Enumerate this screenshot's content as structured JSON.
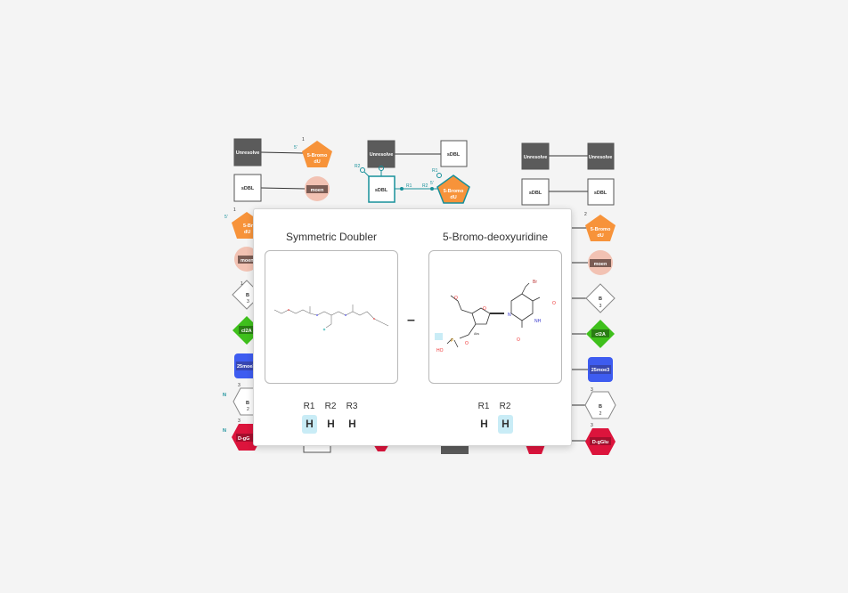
{
  "canvas": {
    "col1": {
      "row1": {
        "a": "Unresolve",
        "b": "5-Bromo dU",
        "num": "1",
        "five": "5'"
      },
      "row2": {
        "a": "sDBL",
        "b": "moen"
      },
      "row3": {
        "a": "5-Bromo dU",
        "five": "5'",
        "num": "1"
      },
      "row4": {
        "a": "moen"
      },
      "row5": {
        "a": "B",
        "sub": "3",
        "num": "1"
      },
      "row6": {
        "a": "cl2A"
      },
      "row7": {
        "a": "25moe3"
      },
      "row8": {
        "a": "B",
        "sub": "2",
        "num": "3",
        "n": "N"
      },
      "row9": {
        "a": "D-gGlu",
        "num": "3",
        "n": "N"
      }
    },
    "col2": {
      "row1": {
        "a": "Unresolve",
        "b": "sDBL"
      },
      "row2": {
        "a": "sDBL",
        "b": "5-Bromo dU",
        "r1": "R1",
        "r2": "R2",
        "r3": "R3",
        "r2b": "R2",
        "r1b": "R1",
        "five": "5'"
      }
    },
    "col3": {
      "row1": {
        "a": "Unresolve",
        "b": "Unresolve"
      },
      "row2": {
        "a": "sDBL",
        "b": "sDBL"
      },
      "row3": {
        "b": "5-Bromo dU",
        "num": "2"
      },
      "row4": {
        "b": "moen"
      },
      "row5": {
        "b": "B",
        "sub": "3"
      },
      "row6": {
        "b": "cl2A"
      },
      "row7": {
        "b": "25moe3"
      },
      "row8": {
        "b": "B",
        "sub": "2",
        "num": "3"
      },
      "row9": {
        "b": "D-gGlu",
        "num": "3"
      }
    }
  },
  "popup": {
    "left": {
      "title": "Symmetric Doubler",
      "rgroups": [
        {
          "label": "R1",
          "value": "H",
          "highlight": true
        },
        {
          "label": "R2",
          "value": "H",
          "highlight": false
        },
        {
          "label": "R3",
          "value": "H",
          "highlight": false
        }
      ]
    },
    "connector": "–",
    "right": {
      "title": "5-Bromo-deoxyuridine",
      "atoms": {
        "br": "Br",
        "o1": "O",
        "o2": "O",
        "o3": "O",
        "o4": "O",
        "o5": "O",
        "n1": "N",
        "nh": "NH",
        "p": "P",
        "ho": "HO",
        "abs": "Abs"
      },
      "rgroups": [
        {
          "label": "R1",
          "value": "H",
          "highlight": false
        },
        {
          "label": "R2",
          "value": "H",
          "highlight": true
        }
      ]
    }
  },
  "colors": {
    "unresolved": "#5b5b5b",
    "bromo": "#f7933a",
    "moen": "#f2c2b3",
    "cl2a": "#3fc01c",
    "moe3": "#3e5cf0",
    "dglu": "#dc143c",
    "teal": "#17909a",
    "highlight": "#c9ecf6"
  }
}
